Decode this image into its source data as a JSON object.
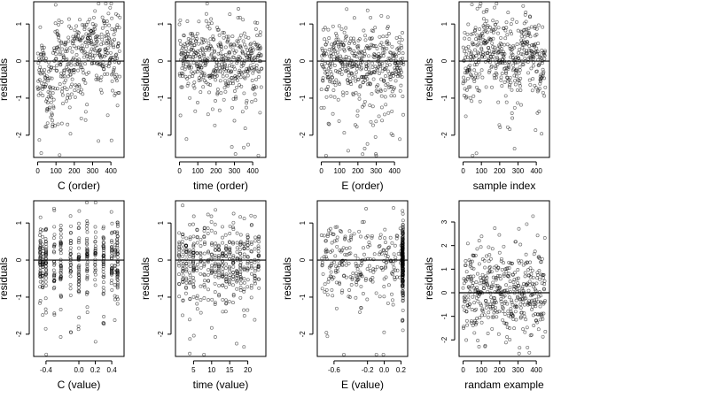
{
  "colors": {
    "background": "#ffffff",
    "ink": "#000000",
    "points": "#000000"
  },
  "chart_data": [
    {
      "type": "scatter",
      "n": 450,
      "pattern": "grouped",
      "seed": 11,
      "xlabel": "C (order)",
      "ylabel": "residuals",
      "xlim": [
        -22,
        472
      ],
      "ylim": [
        -2.6,
        1.6
      ],
      "xticks": [
        0,
        100,
        200,
        300,
        400
      ],
      "xtick_labels": [
        "0",
        "100",
        "200",
        "300",
        "400"
      ],
      "yticks": [
        -2,
        -1,
        0,
        1
      ],
      "ytick_labels": [
        "-2",
        "-1",
        "0",
        "1"
      ],
      "reference_line_y": 0
    },
    {
      "type": "scatter",
      "n": 450,
      "pattern": "order",
      "seed": 23,
      "xlabel": "time (order)",
      "ylabel": "residuals",
      "xlim": [
        -22,
        472
      ],
      "ylim": [
        -2.6,
        1.6
      ],
      "xticks": [
        0,
        100,
        200,
        300,
        400
      ],
      "xtick_labels": [
        "0",
        "100",
        "200",
        "300",
        "400"
      ],
      "yticks": [
        -2,
        -1,
        0,
        1
      ],
      "ytick_labels": [
        "-2",
        "-1",
        "0",
        "1"
      ],
      "reference_line_y": 0
    },
    {
      "type": "scatter",
      "n": 450,
      "pattern": "order",
      "seed": 37,
      "xlabel": "E (order)",
      "ylabel": "residuals",
      "xlim": [
        -22,
        472
      ],
      "ylim": [
        -2.6,
        1.6
      ],
      "xticks": [
        0,
        100,
        200,
        300,
        400
      ],
      "xtick_labels": [
        "0",
        "100",
        "200",
        "300",
        "400"
      ],
      "yticks": [
        -2,
        -1,
        0,
        1
      ],
      "ytick_labels": [
        "-2",
        "-1",
        "0",
        "1"
      ],
      "reference_line_y": 0
    },
    {
      "type": "scatter",
      "n": 450,
      "pattern": "grouped",
      "seed": 41,
      "xlabel": "sample index",
      "ylabel": "residuals",
      "xlim": [
        -22,
        472
      ],
      "ylim": [
        -2.6,
        1.6
      ],
      "xticks": [
        0,
        100,
        200,
        300,
        400
      ],
      "xtick_labels": [
        "0",
        "100",
        "200",
        "300",
        "400"
      ],
      "yticks": [
        -2,
        -1,
        0,
        1
      ],
      "ytick_labels": [
        "-2",
        "-1",
        "0",
        "1"
      ],
      "reference_line_y": 0
    },
    {
      "type": "scatter",
      "n": 450,
      "pattern": "clusters",
      "seed": 53,
      "clusters": [
        -0.47,
        -0.44,
        -0.4,
        -0.3,
        -0.22,
        -0.1,
        0.0,
        0.1,
        0.2,
        0.3,
        0.4,
        0.44,
        0.47
      ],
      "xlabel": "C (value)",
      "ylabel": "residuals",
      "xlim": [
        -0.55,
        0.55
      ],
      "ylim": [
        -2.6,
        1.6
      ],
      "xticks": [
        -0.4,
        0.0,
        0.2,
        0.4
      ],
      "xtick_labels": [
        "-0.4",
        "0.0",
        "0.2",
        "0.4"
      ],
      "yticks": [
        -2,
        -1,
        0,
        1
      ],
      "ytick_labels": [
        "-2",
        "-1",
        "0",
        "1"
      ],
      "reference_line_y": 0
    },
    {
      "type": "scatter",
      "n": 450,
      "pattern": "clusters",
      "seed": 67,
      "clusters": [
        1,
        2,
        3,
        4,
        5,
        6,
        7,
        8,
        9,
        10,
        11,
        12,
        13,
        14,
        15,
        16,
        17,
        18,
        19,
        20,
        21,
        22,
        23
      ],
      "xlabel": "time (value)",
      "ylabel": "residuals",
      "xlim": [
        0,
        25
      ],
      "ylim": [
        -2.6,
        1.6
      ],
      "xticks": [
        5,
        10,
        15,
        20
      ],
      "xtick_labels": [
        "5",
        "10",
        "15",
        "20"
      ],
      "yticks": [
        -2,
        -1,
        0,
        1
      ],
      "ytick_labels": [
        "-2",
        "-1",
        "0",
        "1"
      ],
      "reference_line_y": 0
    },
    {
      "type": "scatter",
      "n": 450,
      "pattern": "pileup",
      "seed": 79,
      "pileup_x": 0.22,
      "pileup_share": 0.45,
      "xlabel": "E (value)",
      "ylabel": "residuals",
      "xlim": [
        -0.8,
        0.28
      ],
      "ylim": [
        -2.6,
        1.6
      ],
      "xticks": [
        -0.6,
        -0.2,
        0.0,
        0.2
      ],
      "xtick_labels": [
        "-0.6",
        "-0.2",
        "0.0",
        "0.2"
      ],
      "yticks": [
        -2,
        -1,
        0,
        1
      ],
      "ytick_labels": [
        "-2",
        "-1",
        "0",
        "1"
      ],
      "reference_line_y": 0
    },
    {
      "type": "scatter",
      "n": 450,
      "pattern": "normal",
      "seed": 97,
      "xlabel": "randam example",
      "ylabel": "residuals",
      "xlim": [
        -22,
        472
      ],
      "ylim": [
        -2.7,
        3.9
      ],
      "xticks": [
        0,
        100,
        200,
        300,
        400
      ],
      "xtick_labels": [
        "0",
        "100",
        "200",
        "300",
        "400"
      ],
      "yticks": [
        -2,
        -1,
        0,
        1,
        2,
        3
      ],
      "ytick_labels": [
        "-2",
        "-1",
        "0",
        "1",
        "2",
        "3"
      ],
      "reference_line_y": 0
    }
  ]
}
